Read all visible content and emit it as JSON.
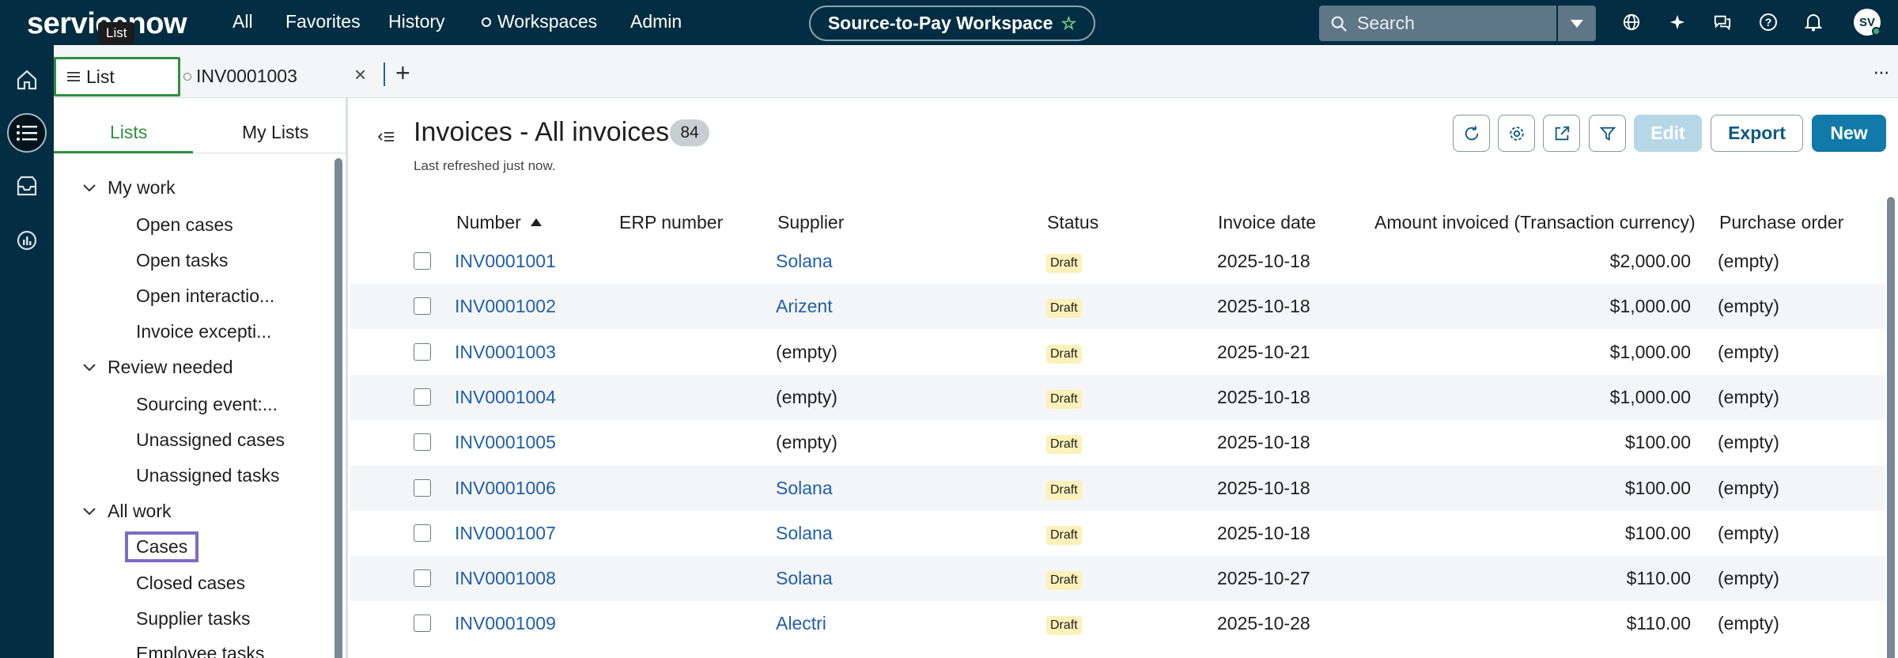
{
  "header": {
    "logo_text": "servicenow",
    "logo_tooltip": "List",
    "nav": [
      "All",
      "Favorites",
      "History",
      "Workspaces",
      "Admin"
    ],
    "workspace": "Source-to-Pay Workspace",
    "search_placeholder": "Search",
    "user_initials": "SV"
  },
  "tabs": {
    "list": "List",
    "record": "INV0001003"
  },
  "left_panel": {
    "tabs": [
      "Lists",
      "My Lists"
    ],
    "groups": [
      {
        "label": "My work",
        "items": [
          "Open cases",
          "Open tasks",
          "Open interactio...",
          "Invoice excepti..."
        ]
      },
      {
        "label": "Review needed",
        "items": [
          "Sourcing event:...",
          "Unassigned cases",
          "Unassigned tasks"
        ]
      },
      {
        "label": "All work",
        "items": [
          "Cases",
          "Closed cases",
          "Supplier tasks",
          "Employee tasks"
        ]
      }
    ]
  },
  "main": {
    "title": "Invoices - All invoices",
    "count": "84",
    "refreshed": "Last refreshed just now.",
    "buttons": {
      "edit": "Edit",
      "export": "Export",
      "new": "New"
    }
  },
  "table": {
    "columns": [
      "Number",
      "ERP number",
      "Supplier",
      "Status",
      "Invoice date",
      "Amount invoiced (Transaction currency)",
      "Purchase order"
    ],
    "rows": [
      {
        "number": "INV0001001",
        "erp": "",
        "supplier": "Solana",
        "supplier_link": true,
        "status": "Draft",
        "date": "2025-10-18",
        "amount": "$2,000.00",
        "po": "(empty)"
      },
      {
        "number": "INV0001002",
        "erp": "",
        "supplier": "Arizent",
        "supplier_link": true,
        "status": "Draft",
        "date": "2025-10-18",
        "amount": "$1,000.00",
        "po": "(empty)"
      },
      {
        "number": "INV0001003",
        "erp": "",
        "supplier": "(empty)",
        "supplier_link": false,
        "status": "Draft",
        "date": "2025-10-21",
        "amount": "$1,000.00",
        "po": "(empty)"
      },
      {
        "number": "INV0001004",
        "erp": "",
        "supplier": "(empty)",
        "supplier_link": false,
        "status": "Draft",
        "date": "2025-10-18",
        "amount": "$1,000.00",
        "po": "(empty)"
      },
      {
        "number": "INV0001005",
        "erp": "",
        "supplier": "(empty)",
        "supplier_link": false,
        "status": "Draft",
        "date": "2025-10-18",
        "amount": "$100.00",
        "po": "(empty)"
      },
      {
        "number": "INV0001006",
        "erp": "",
        "supplier": "Solana",
        "supplier_link": true,
        "status": "Draft",
        "date": "2025-10-18",
        "amount": "$100.00",
        "po": "(empty)"
      },
      {
        "number": "INV0001007",
        "erp": "",
        "supplier": "Solana",
        "supplier_link": true,
        "status": "Draft",
        "date": "2025-10-18",
        "amount": "$100.00",
        "po": "(empty)"
      },
      {
        "number": "INV0001008",
        "erp": "",
        "supplier": "Solana",
        "supplier_link": true,
        "status": "Draft",
        "date": "2025-10-27",
        "amount": "$110.00",
        "po": "(empty)"
      },
      {
        "number": "INV0001009",
        "erp": "",
        "supplier": "Alectri",
        "supplier_link": true,
        "status": "Draft",
        "date": "2025-10-28",
        "amount": "$110.00",
        "po": "(empty)"
      }
    ]
  },
  "colors": {
    "header_bg": "#032d42",
    "accent_green": "#2e8f3f",
    "link_blue": "#1f5fae",
    "primary_button": "#117aa8",
    "draft_badge": "#fbf1b9"
  },
  "icons": [
    "home-icon",
    "list-icon",
    "inbox-icon",
    "analytics-icon",
    "search-icon",
    "globe-icon",
    "sparkle-icon",
    "chat-icon",
    "help-icon",
    "bell-icon",
    "refresh-icon",
    "settings-icon",
    "share-icon",
    "filter-icon",
    "sort-ascending-icon",
    "chevron-down-icon",
    "close-icon",
    "add-icon",
    "more-icon"
  ]
}
